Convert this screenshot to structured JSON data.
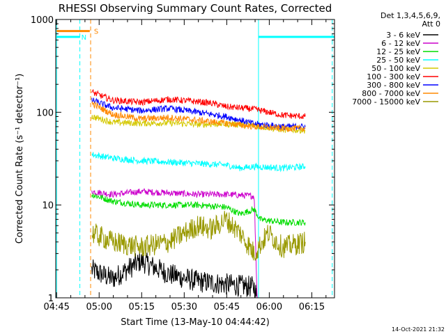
{
  "chart_data": {
    "type": "line",
    "title": "RHESSI Observing Summary Count Rates, Corrected",
    "xlabel": "Start Time (13-May-10 04:44:42)",
    "ylabel": "Corrected Count Rate (s⁻¹ detector⁻¹)",
    "y_scale": "log",
    "ylim": [
      1,
      1000
    ],
    "xlim": [
      "04:44:42",
      "06:23:00"
    ],
    "x_ticks": [
      "04:45",
      "05:00",
      "05:15",
      "05:30",
      "05:45",
      "06:00",
      "06:15"
    ],
    "x_tick_minutes": [
      0.3,
      15.3,
      30.3,
      45.3,
      60.3,
      75.3,
      90.3
    ],
    "y_ticks": [
      1,
      10,
      100,
      1000
    ],
    "y_tick_labels": [
      "1",
      "10",
      "100",
      "1000"
    ],
    "grid": false,
    "legend_header": [
      "Det 1,3,4,5,6,9,",
      "Att 0"
    ],
    "legend_position": "top-right outside",
    "series": [
      {
        "name": "3 - 6 keV",
        "color": "#000000",
        "x": [
          12.7,
          20,
          30,
          40,
          50,
          60,
          70,
          71
        ],
        "y": [
          2,
          1.6,
          2.5,
          1.8,
          1.5,
          1.4,
          1.3,
          1
        ]
      },
      {
        "name": "6 - 12 keV",
        "color": "#cc00cc",
        "x": [
          12.7,
          20,
          30,
          40,
          50,
          60,
          70,
          71
        ],
        "y": [
          14,
          13,
          14,
          13.5,
          13,
          13,
          12.5,
          1
        ]
      },
      {
        "name": "12 - 25 keV",
        "color": "#00dd00",
        "x": [
          12.7,
          20,
          30,
          40,
          50,
          60,
          65,
          70,
          72,
          80,
          88
        ],
        "y": [
          13,
          11,
          10,
          10,
          10,
          9.5,
          8,
          9,
          7,
          6.5,
          6.5
        ]
      },
      {
        "name": "25 - 50 keV",
        "color": "#00ffff",
        "x": [
          12.7,
          20,
          30,
          40,
          50,
          60,
          65,
          70,
          80,
          88
        ],
        "y": [
          35,
          32,
          30,
          29,
          28,
          27,
          25,
          26,
          25,
          26
        ]
      },
      {
        "name": "50 - 100 keV",
        "color": "#d4c800",
        "x": [
          12.7,
          20,
          30,
          40,
          50,
          60,
          70,
          80,
          88
        ],
        "y": [
          90,
          78,
          76,
          77,
          74,
          75,
          72,
          65,
          64
        ]
      },
      {
        "name": "100 - 300 keV",
        "color": "#ff0000",
        "x": [
          12.7,
          20,
          30,
          40,
          50,
          55,
          60,
          70,
          80,
          88
        ],
        "y": [
          165,
          135,
          128,
          138,
          130,
          125,
          115,
          108,
          93,
          90
        ]
      },
      {
        "name": "300 - 800 keV",
        "color": "#0000ff",
        "x": [
          12.7,
          20,
          30,
          40,
          50,
          60,
          70,
          80,
          88
        ],
        "y": [
          135,
          112,
          104,
          110,
          100,
          90,
          75,
          70,
          70
        ]
      },
      {
        "name": "800 - 7000 keV",
        "color": "#ff8800",
        "x": [
          12.7,
          20,
          30,
          40,
          50,
          60,
          70,
          80,
          88
        ],
        "y": [
          125,
          95,
          85,
          88,
          82,
          76,
          70,
          67,
          67
        ]
      },
      {
        "name": "7000 - 15000 keV",
        "color": "#999900",
        "x": [
          12.7,
          20,
          30,
          40,
          50,
          55,
          60,
          65,
          70,
          75,
          80,
          88
        ],
        "y": [
          5,
          4,
          3.5,
          4,
          6,
          5.5,
          7,
          5,
          3,
          5,
          3.5,
          4
        ]
      }
    ],
    "flags": [
      {
        "label": "S",
        "color": "#ff8800",
        "x_start": 0.3,
        "x_end": 12.0,
        "y": 750
      },
      {
        "label": "N",
        "color": "#00ffff",
        "x_start": 0.3,
        "x_end": 12.0,
        "y": 650,
        "segment_end": 8.5
      },
      {
        "label": "",
        "color": "#00ffff",
        "x_start": 71.5,
        "x_end": 98.3,
        "y": 650
      }
    ],
    "vertical_lines": [
      {
        "x": 0.3,
        "color": "#00ffff",
        "style": "solid"
      },
      {
        "x": 8.5,
        "color": "#00ffff",
        "style": "dashed"
      },
      {
        "x": 12.3,
        "color": "#ff8800",
        "style": "dashed"
      },
      {
        "x": 71.5,
        "color": "#00ffff",
        "style": "solid"
      },
      {
        "x": 97.5,
        "color": "#00ffff",
        "style": "dashed"
      }
    ],
    "timestamp": "14-Oct-2021 21:32"
  }
}
